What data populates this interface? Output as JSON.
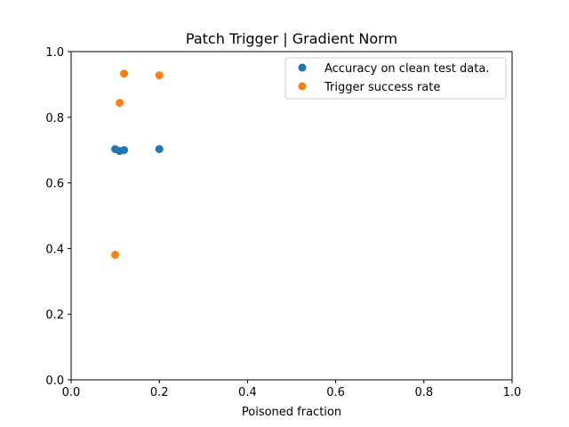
{
  "chart_data": {
    "type": "scatter",
    "title": "Patch Trigger | Gradient Norm",
    "xlabel": "Poisoned fraction",
    "ylabel": "",
    "xlim": [
      0,
      1
    ],
    "ylim": [
      0,
      1
    ],
    "xticks": [
      "0.0",
      "0.2",
      "0.4",
      "0.6",
      "0.8",
      "1.0"
    ],
    "yticks": [
      "0.0",
      "0.2",
      "0.4",
      "0.6",
      "0.8",
      "1.0"
    ],
    "grid": false,
    "legend_position": "top-right",
    "series": [
      {
        "name": "Accuracy on clean test data.",
        "color": "#1f77b4",
        "points": [
          {
            "x": 0.1,
            "y": 0.703
          },
          {
            "x": 0.11,
            "y": 0.697
          },
          {
            "x": 0.12,
            "y": 0.7
          },
          {
            "x": 0.2,
            "y": 0.703
          }
        ]
      },
      {
        "name": "Trigger success rate",
        "color": "#ff7f0e",
        "points": [
          {
            "x": 0.1,
            "y": 0.381
          },
          {
            "x": 0.11,
            "y": 0.844
          },
          {
            "x": 0.12,
            "y": 0.933
          },
          {
            "x": 0.2,
            "y": 0.928
          }
        ]
      }
    ]
  }
}
